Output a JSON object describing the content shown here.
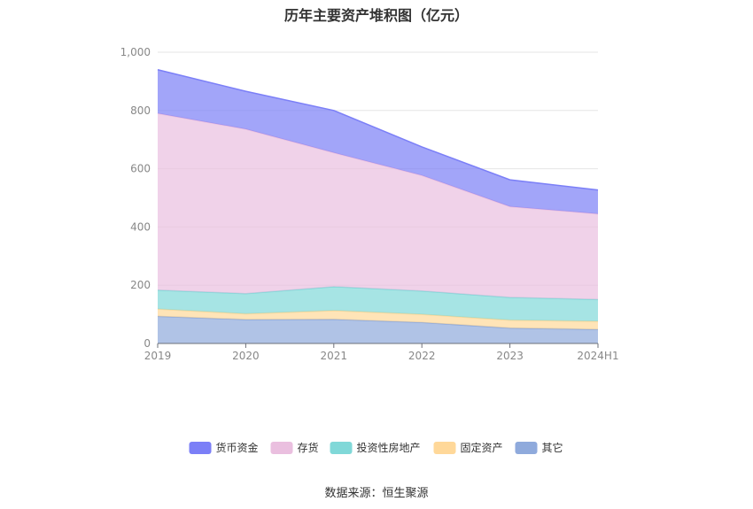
{
  "chart_data": {
    "type": "area",
    "stacked": true,
    "title": "历年主要资产堆积图（亿元）",
    "xlabel": "",
    "ylabel": "",
    "categories": [
      "2019",
      "2020",
      "2021",
      "2022",
      "2023",
      "2024H1"
    ],
    "ylim": [
      0,
      1000
    ],
    "yticks": [
      0,
      200,
      400,
      600,
      800,
      1000
    ],
    "ytick_labels": [
      "0",
      "200",
      "400",
      "600",
      "800",
      "1,000"
    ],
    "grid": true,
    "legend_position": "bottom",
    "series": [
      {
        "name": "其它",
        "color": "#8faadc",
        "values": [
          93,
          82,
          83,
          72,
          53,
          48
        ]
      },
      {
        "name": "固定资产",
        "color": "#ffd899",
        "values": [
          25,
          20,
          30,
          28,
          27,
          28
        ]
      },
      {
        "name": "投资性房地产",
        "color": "#80d8d8",
        "values": [
          65,
          69,
          82,
          80,
          78,
          75
        ]
      },
      {
        "name": "存货",
        "color": "#eabfdf",
        "values": [
          607,
          565,
          460,
          397,
          312,
          294
        ]
      },
      {
        "name": "货币资金",
        "color": "#7b7ff7",
        "values": [
          150,
          130,
          145,
          98,
          92,
          82
        ]
      }
    ],
    "legend_order": [
      "货币资金",
      "存货",
      "投资性房地产",
      "固定资产",
      "其它"
    ]
  },
  "source_text": "数据来源：恒生聚源"
}
